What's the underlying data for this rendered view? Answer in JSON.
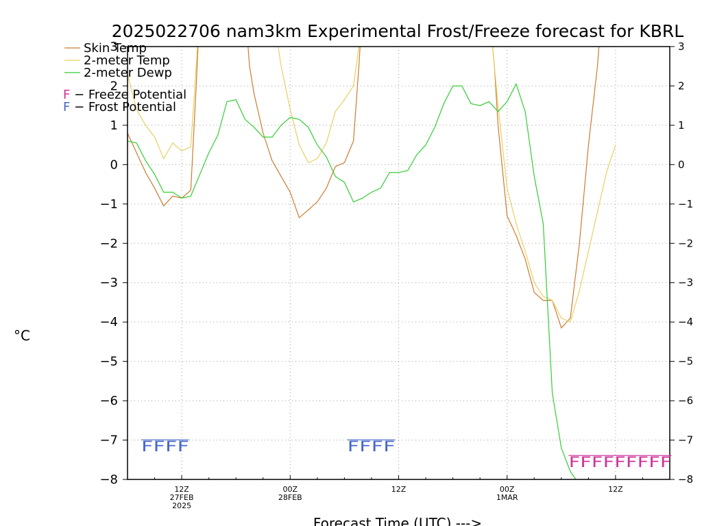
{
  "chart_data": {
    "type": "line",
    "title": "2025022706 nam3km Experimental Frost/Freeze forecast for KBRL",
    "xlabel": "Forecast Time (UTC) --->",
    "ylabel": "°C",
    "ylim": [
      -8,
      3
    ],
    "yticks": [
      "3",
      "2",
      "1",
      "0",
      "−1",
      "−2",
      "−3",
      "−4",
      "−5",
      "−6",
      "−7",
      "−8"
    ],
    "xlim": [
      6,
      66
    ],
    "xticks": [
      {
        "t": 12,
        "lines": [
          "12Z",
          "27FEB",
          "2025"
        ]
      },
      {
        "t": 24,
        "lines": [
          "00Z",
          "28FEB"
        ]
      },
      {
        "t": 36,
        "lines": [
          "12Z"
        ]
      },
      {
        "t": 48,
        "lines": [
          "00Z",
          "1MAR"
        ]
      },
      {
        "t": 60,
        "lines": [
          "12Z"
        ]
      }
    ],
    "grid": true,
    "legend_position": "top-left",
    "series": [
      {
        "name": "Skin Temp",
        "color": "#cc7a30",
        "points": [
          [
            6,
            0.8
          ],
          [
            7,
            0.3
          ],
          [
            8,
            -0.2
          ],
          [
            9,
            -0.6
          ],
          [
            10,
            -1.05
          ],
          [
            11,
            -0.8
          ],
          [
            12,
            -0.85
          ],
          [
            13,
            -0.65
          ],
          [
            13.6,
            2.0
          ],
          [
            14,
            4.0
          ],
          [
            19,
            4.0
          ],
          [
            19.5,
            2.5
          ],
          [
            20,
            1.8
          ],
          [
            21,
            0.8
          ],
          [
            22,
            0.1
          ],
          [
            23,
            -0.3
          ],
          [
            24,
            -0.7
          ],
          [
            25,
            -1.35
          ],
          [
            26,
            -1.15
          ],
          [
            27,
            -0.95
          ],
          [
            28,
            -0.6
          ],
          [
            29,
            -0.05
          ],
          [
            30,
            0.05
          ],
          [
            31,
            0.6
          ],
          [
            31.6,
            2.5
          ],
          [
            32,
            4.0
          ],
          [
            46,
            4.0
          ],
          [
            46.6,
            2.5
          ],
          [
            47,
            1.0
          ],
          [
            48,
            -1.3
          ],
          [
            49,
            -1.8
          ],
          [
            50,
            -2.4
          ],
          [
            51,
            -3.25
          ],
          [
            52,
            -3.45
          ],
          [
            53,
            -3.45
          ],
          [
            54,
            -4.15
          ],
          [
            55,
            -3.9
          ],
          [
            56,
            -2.0
          ],
          [
            57,
            0.5
          ],
          [
            58,
            2.5
          ],
          [
            58.5,
            4.0
          ]
        ]
      },
      {
        "name": "2-meter Temp",
        "color": "#e8d060",
        "points": [
          [
            6,
            2.3
          ],
          [
            7,
            1.4
          ],
          [
            8,
            1.0
          ],
          [
            9,
            0.7
          ],
          [
            10,
            0.15
          ],
          [
            11,
            0.55
          ],
          [
            12,
            0.35
          ],
          [
            13,
            0.45
          ],
          [
            13.6,
            2.5
          ],
          [
            14,
            4.0
          ],
          [
            22,
            4.0
          ],
          [
            23,
            2.5
          ],
          [
            24,
            1.4
          ],
          [
            25,
            0.5
          ],
          [
            26,
            0.05
          ],
          [
            27,
            0.15
          ],
          [
            28,
            0.55
          ],
          [
            29,
            1.35
          ],
          [
            30,
            1.65
          ],
          [
            31,
            2.0
          ],
          [
            31.6,
            3.0
          ],
          [
            32,
            4.0
          ],
          [
            46,
            4.0
          ],
          [
            46.6,
            2.5
          ],
          [
            47,
            1.5
          ],
          [
            48,
            -0.6
          ],
          [
            49,
            -1.5
          ],
          [
            50,
            -2.2
          ],
          [
            51,
            -3.0
          ],
          [
            52,
            -3.35
          ],
          [
            53,
            -3.45
          ],
          [
            54,
            -3.9
          ],
          [
            55,
            -4.0
          ],
          [
            56,
            -3.2
          ],
          [
            57,
            -2.2
          ],
          [
            58,
            -1.2
          ],
          [
            59,
            -0.2
          ],
          [
            60,
            0.5
          ]
        ]
      },
      {
        "name": "2-meter Dewp",
        "color": "#33cc33",
        "points": [
          [
            6,
            0.6
          ],
          [
            7,
            0.55
          ],
          [
            8,
            0.1
          ],
          [
            9,
            -0.25
          ],
          [
            10,
            -0.7
          ],
          [
            11,
            -0.7
          ],
          [
            12,
            -0.85
          ],
          [
            13,
            -0.8
          ],
          [
            14,
            -0.25
          ],
          [
            15,
            0.3
          ],
          [
            16,
            0.75
          ],
          [
            17,
            1.6
          ],
          [
            18,
            1.65
          ],
          [
            19,
            1.15
          ],
          [
            20,
            0.95
          ],
          [
            21,
            0.7
          ],
          [
            22,
            0.7
          ],
          [
            23,
            1.0
          ],
          [
            24,
            1.2
          ],
          [
            25,
            1.15
          ],
          [
            26,
            0.95
          ],
          [
            27,
            0.5
          ],
          [
            28,
            0.2
          ],
          [
            29,
            -0.3
          ],
          [
            30,
            -0.45
          ],
          [
            31,
            -0.95
          ],
          [
            32,
            -0.85
          ],
          [
            33,
            -0.7
          ],
          [
            34,
            -0.6
          ],
          [
            35,
            -0.2
          ],
          [
            36,
            -0.2
          ],
          [
            37,
            -0.15
          ],
          [
            38,
            0.25
          ],
          [
            39,
            0.5
          ],
          [
            40,
            0.95
          ],
          [
            41,
            1.55
          ],
          [
            42,
            2.0
          ],
          [
            43,
            2.0
          ],
          [
            44,
            1.55
          ],
          [
            45,
            1.5
          ],
          [
            46,
            1.6
          ],
          [
            47,
            1.35
          ],
          [
            48,
            1.6
          ],
          [
            49,
            2.05
          ],
          [
            50,
            1.35
          ],
          [
            51,
            -0.3
          ],
          [
            52,
            -1.5
          ],
          [
            53,
            -5.8
          ],
          [
            54,
            -7.2
          ],
          [
            55,
            -7.8
          ],
          [
            55.6,
            -8.0
          ]
        ]
      }
    ],
    "potential_legend": [
      {
        "letter": "F",
        "text": " − Freeze Potential",
        "color": "#cc3399"
      },
      {
        "letter": "F",
        "text": " − Frost Potential",
        "color": "#4466cc"
      }
    ],
    "markers": [
      {
        "text": "FFFF",
        "color": "#4466cc",
        "t_start": 7.5,
        "t_end": 12.8,
        "value": -7.15
      },
      {
        "text": "FFFF",
        "color": "#4466cc",
        "t_start": 30.3,
        "t_end": 35.6,
        "value": -7.15
      },
      {
        "text": "FFFFFFFFF",
        "color": "#cc3399",
        "t_start": 54.8,
        "t_end": 66.2,
        "value": -7.55
      }
    ]
  }
}
